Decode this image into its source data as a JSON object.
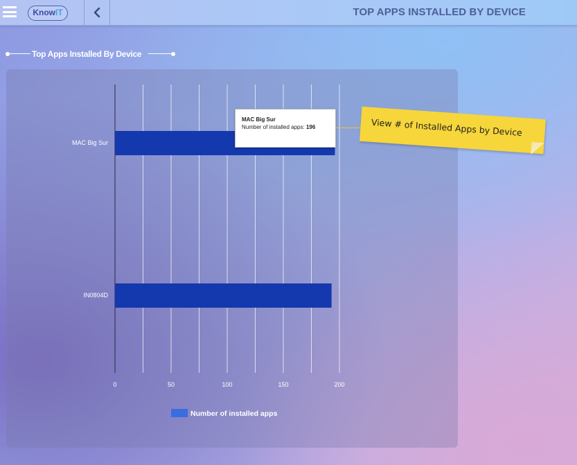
{
  "header": {
    "logo_text": "Know",
    "logo_accent": "IT",
    "title": "TOP APPS INSTALLED BY DEVICE"
  },
  "section": {
    "title": "Top Apps Installed By Device"
  },
  "chart_data": {
    "type": "bar",
    "orientation": "horizontal",
    "categories": [
      "MAC Big Sur",
      "IN0804D"
    ],
    "series": [
      {
        "name": "Number of installed apps",
        "values": [
          196,
          193
        ],
        "color": "#1438ae"
      }
    ],
    "xlim": [
      0,
      200
    ],
    "x_ticks": [
      0,
      50,
      100,
      150,
      200
    ],
    "grid": true,
    "legend": "bottom",
    "legend_color": "#3a6ee0"
  },
  "tooltip": {
    "title": "MAC Big Sur",
    "label": "Number of installed apps: ",
    "value": "196"
  },
  "annotation": {
    "text": "View # of Installed Apps by Device"
  },
  "icons": [
    "hamburger-icon",
    "chevron-left-icon"
  ]
}
